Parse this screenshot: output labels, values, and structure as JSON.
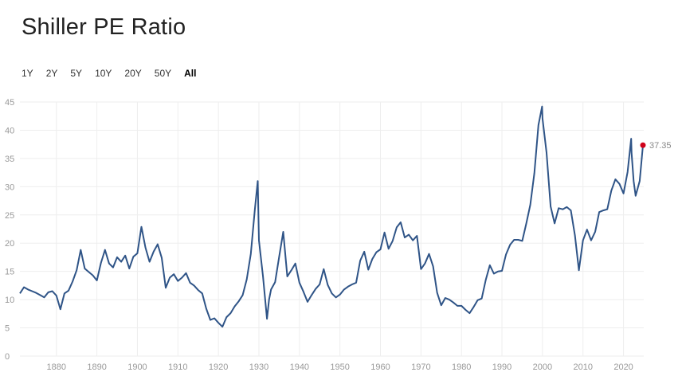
{
  "title": "Shiller PE Ratio",
  "ranges": [
    {
      "label": "1Y",
      "active": false
    },
    {
      "label": "2Y",
      "active": false
    },
    {
      "label": "5Y",
      "active": false
    },
    {
      "label": "10Y",
      "active": false
    },
    {
      "label": "20Y",
      "active": false
    },
    {
      "label": "50Y",
      "active": false
    },
    {
      "label": "All",
      "active": true
    }
  ],
  "colors": {
    "line": "#2f5487",
    "last_point": "#d0021b",
    "grid": "#eeeeee"
  },
  "chart_data": {
    "type": "line",
    "title": "Shiller PE Ratio",
    "xlim": [
      1871,
      2025
    ],
    "ylim": [
      0,
      45
    ],
    "x_ticks": [
      1880,
      1890,
      1900,
      1910,
      1920,
      1930,
      1940,
      1950,
      1960,
      1970,
      1980,
      1990,
      2000,
      2010,
      2020
    ],
    "y_ticks": [
      0,
      5,
      10,
      15,
      20,
      25,
      30,
      35,
      40,
      45
    ],
    "grid": true,
    "last_value_label": "37.35",
    "series": [
      {
        "x": [
          1871,
          1872,
          1873,
          1874,
          1875,
          1876,
          1877,
          1878,
          1879,
          1880,
          1881,
          1882,
          1883,
          1884,
          1885,
          1886,
          1887,
          1888,
          1889,
          1890,
          1891,
          1892,
          1893,
          1894,
          1895,
          1896,
          1897,
          1898,
          1899,
          1900,
          1901,
          1902,
          1903,
          1904,
          1905,
          1906,
          1907,
          1908,
          1909,
          1910,
          1911,
          1912,
          1913,
          1914,
          1915,
          1916,
          1917,
          1918,
          1919,
          1920,
          1921,
          1922,
          1923,
          1924,
          1925,
          1926,
          1927,
          1928,
          1929,
          1929.7,
          1930,
          1931,
          1932,
          1932.5,
          1933,
          1934,
          1935,
          1936,
          1937,
          1938,
          1939,
          1940,
          1941,
          1942,
          1943,
          1944,
          1945,
          1946,
          1947,
          1948,
          1949,
          1950,
          1951,
          1952,
          1953,
          1954,
          1955,
          1956,
          1957,
          1958,
          1959,
          1960,
          1961,
          1962,
          1963,
          1964,
          1965,
          1966,
          1967,
          1968,
          1969,
          1970,
          1971,
          1972,
          1973,
          1974,
          1975,
          1976,
          1977,
          1978,
          1979,
          1980,
          1981,
          1982,
          1983,
          1984,
          1985,
          1986,
          1987,
          1988,
          1989,
          1990,
          1991,
          1992,
          1993,
          1994,
          1995,
          1996,
          1997,
          1998,
          1999,
          1999.9,
          2000,
          2001,
          2002,
          2003,
          2004,
          2005,
          2006,
          2007,
          2008,
          2009,
          2010,
          2011,
          2012,
          2013,
          2014,
          2015,
          2016,
          2017,
          2018,
          2019,
          2020,
          2021,
          2021.9,
          2022,
          2022.5,
          2023,
          2024,
          2024.8
        ],
        "y": [
          11.1,
          12.2,
          11.8,
          11.5,
          11.2,
          10.8,
          10.4,
          11.3,
          11.5,
          10.7,
          8.3,
          11.1,
          11.6,
          13.2,
          15.2,
          18.8,
          15.5,
          14.9,
          14.3,
          13.4,
          16.5,
          18.8,
          16.4,
          15.7,
          17.5,
          16.7,
          17.8,
          15.5,
          17.6,
          18.2,
          22.9,
          19.2,
          16.7,
          18.5,
          19.8,
          17.4,
          12.1,
          13.9,
          14.5,
          13.3,
          13.9,
          14.7,
          13.0,
          12.5,
          11.7,
          11.1,
          8.4,
          6.4,
          6.7,
          5.9,
          5.2,
          6.9,
          7.6,
          8.8,
          9.7,
          10.8,
          13.6,
          18.1,
          26.0,
          31.0,
          20.5,
          14.1,
          6.6,
          10.0,
          11.8,
          13.1,
          17.6,
          22.0,
          14.1,
          15.2,
          16.4,
          13.0,
          11.4,
          9.6,
          10.8,
          11.9,
          12.7,
          15.4,
          12.6,
          11.1,
          10.4,
          10.9,
          11.8,
          12.3,
          12.7,
          13.0,
          16.9,
          18.5,
          15.3,
          17.2,
          18.4,
          18.9,
          21.9,
          19.0,
          20.4,
          22.8,
          23.7,
          21.0,
          21.5,
          20.5,
          21.3,
          15.4,
          16.4,
          18.1,
          15.9,
          11.2,
          9.0,
          10.3,
          10.0,
          9.5,
          8.9,
          8.9,
          8.2,
          7.6,
          8.7,
          9.9,
          10.2,
          13.5,
          16.1,
          14.6,
          15.0,
          15.1,
          18.0,
          19.7,
          20.6,
          20.6,
          20.4,
          23.5,
          26.8,
          32.4,
          40.9,
          44.2,
          42.1,
          36.0,
          26.5,
          23.5,
          26.2,
          26.0,
          26.4,
          25.8,
          21.4,
          15.2,
          20.5,
          22.4,
          20.5,
          22.0,
          25.5,
          25.8,
          26.0,
          29.3,
          31.3,
          30.5,
          28.8,
          32.6,
          38.5,
          36.0,
          31.0,
          28.4,
          31.0,
          37.35
        ]
      }
    ]
  }
}
